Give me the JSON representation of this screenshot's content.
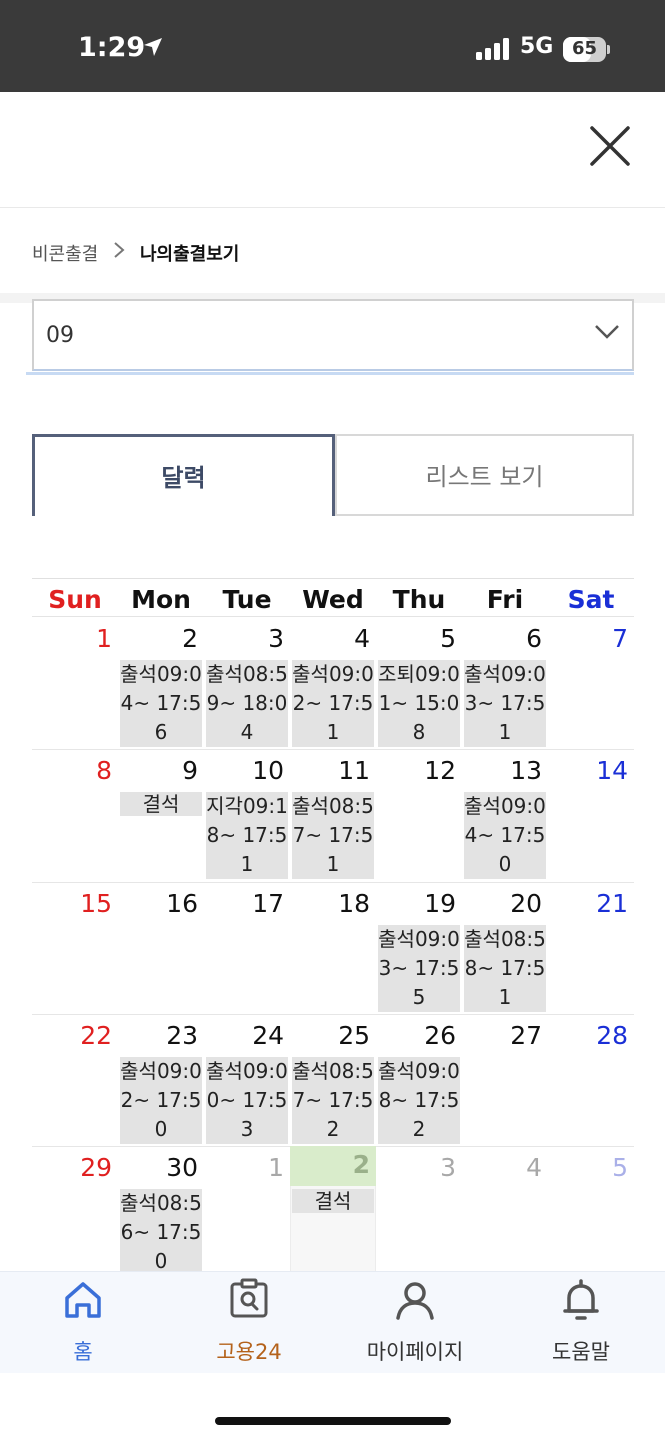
{
  "status_bar": {
    "time": "1:29",
    "network": "5G",
    "battery": "65",
    "battery_level": 0.65
  },
  "icons": {
    "close": "close-icon",
    "location": "location-arrow-icon",
    "signal": "signal-bars-icon",
    "battery": "battery-icon",
    "breadcrumb_separator": "chevron-right-icon",
    "select_arrow": "chevron-down-icon",
    "home": "home-icon",
    "goyong": "search-document-icon",
    "mypage": "person-icon",
    "help": "bell-icon"
  },
  "breadcrumb": {
    "parent": "비콘출결",
    "current": "나의출결보기"
  },
  "month_select": {
    "value": "09"
  },
  "tabs": {
    "calendar": "달력",
    "list": "리스트 보기"
  },
  "calendar": {
    "weekdays": [
      "Sun",
      "Mon",
      "Tue",
      "Wed",
      "Thu",
      "Fri",
      "Sat"
    ],
    "weeks": [
      {
        "days": [
          "1",
          "2",
          "3",
          "4",
          "5",
          "6",
          "7"
        ],
        "records": [
          "",
          "출석09:04~ 17:56",
          "출석08:59~ 18:04",
          "출석09:02~ 17:51",
          "조퇴09:01~ 15:08",
          "출석09:03~ 17:51",
          ""
        ]
      },
      {
        "days": [
          "8",
          "9",
          "10",
          "11",
          "12",
          "13",
          "14"
        ],
        "records": [
          "",
          "결석",
          "지각09:18~ 17:51",
          "출석08:57~ 17:51",
          "",
          "출석09:04~ 17:50",
          ""
        ]
      },
      {
        "days": [
          "15",
          "16",
          "17",
          "18",
          "19",
          "20",
          "21"
        ],
        "records": [
          "",
          "",
          "",
          "",
          "출석09:03~ 17:55",
          "출석08:58~ 17:51",
          ""
        ]
      },
      {
        "days": [
          "22",
          "23",
          "24",
          "25",
          "26",
          "27",
          "28"
        ],
        "records": [
          "",
          "출석09:02~ 17:50",
          "출석09:00~ 17:53",
          "출석08:57~ 17:52",
          "출석09:08~ 17:52",
          "",
          ""
        ]
      },
      {
        "days": [
          "29",
          "30",
          "1",
          "2",
          "3",
          "4",
          "5"
        ],
        "records": [
          "",
          "출석08:56~ 17:50",
          "",
          "결석",
          "",
          "",
          ""
        ]
      }
    ]
  },
  "bottom_nav": {
    "home": "홈",
    "goyong": "고용24",
    "mypage": "마이페이지",
    "help": "도움말"
  },
  "colors": {
    "sunday": "#e02020",
    "saturday": "#1a2fd6",
    "accent_blue": "#3a6fd8",
    "accent_orange": "#b4621b",
    "today_bg": "#d9eccb"
  }
}
